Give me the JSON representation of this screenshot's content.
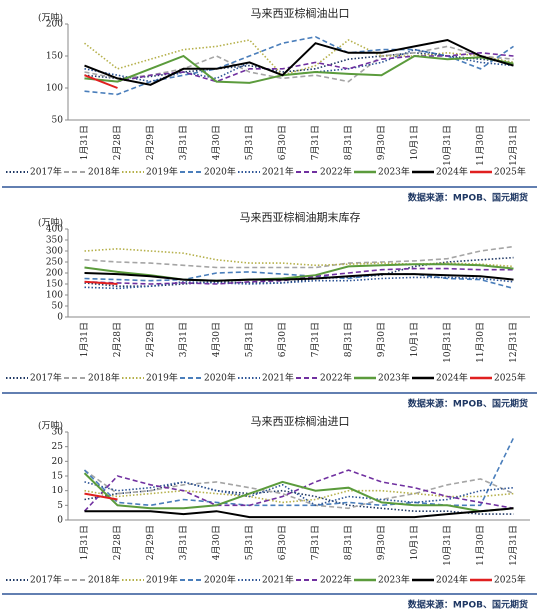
{
  "chart_data": [
    {
      "type": "line",
      "title": "马来西亚棕榈油出口",
      "y_unit": "(万吨)",
      "source": "数据来源：MPOB、国元期货",
      "categories": [
        "1月31日",
        "2月28日",
        "2月29日",
        "3月31日",
        "4月30日",
        "5月31日",
        "6月30日",
        "7月31日",
        "8月31日",
        "9月30日",
        "10月1日",
        "10月31日",
        "11月30日",
        "12月31日"
      ],
      "ylim": [
        50,
        200
      ],
      "yticks": [
        50,
        100,
        150,
        200
      ],
      "series": [
        {
          "name": "2017年",
          "color": "#1f3864",
          "style": "dotted",
          "values": [
            120,
            115,
            118,
            125,
            130,
            135,
            125,
            130,
            145,
            150,
            155,
            150,
            145,
            140
          ]
        },
        {
          "name": "2018年",
          "color": "#a5a5a5",
          "style": "dashed",
          "values": [
            125,
            115,
            120,
            130,
            150,
            125,
            115,
            120,
            110,
            150,
            155,
            165,
            150,
            145
          ]
        },
        {
          "name": "2019年",
          "color": "#b5b04a",
          "style": "dotted",
          "values": [
            170,
            130,
            145,
            160,
            165,
            175,
            120,
            135,
            175,
            150,
            150,
            155,
            150,
            140
          ]
        },
        {
          "name": "2020年",
          "color": "#4a7ebb",
          "style": "dashed",
          "values": [
            95,
            90,
            110,
            120,
            130,
            150,
            170,
            180,
            155,
            160,
            160,
            150,
            130,
            165
          ]
        },
        {
          "name": "2021年",
          "color": "#2e5597",
          "style": "dotted",
          "values": [
            130,
            120,
            110,
            125,
            115,
            140,
            120,
            125,
            130,
            140,
            160,
            150,
            140,
            135
          ]
        },
        {
          "name": "2022年",
          "color": "#7030a0",
          "style": "dashed",
          "values": [
            115,
            110,
            120,
            125,
            110,
            130,
            130,
            140,
            130,
            145,
            150,
            150,
            155,
            150
          ]
        },
        {
          "name": "2023年",
          "color": "#5b9b3c",
          "style": "solid",
          "values": [
            115,
            110,
            130,
            150,
            110,
            108,
            120,
            125,
            122,
            120,
            150,
            145,
            148,
            138
          ]
        },
        {
          "name": "2024年",
          "color": "#000000",
          "style": "solid",
          "values": [
            135,
            115,
            105,
            130,
            130,
            140,
            120,
            170,
            155,
            155,
            165,
            175,
            150,
            135
          ]
        },
        {
          "name": "2025年",
          "color": "#e02020",
          "style": "solid",
          "values": [
            120,
            100,
            null,
            null,
            null,
            null,
            null,
            null,
            null,
            null,
            null,
            null,
            null,
            null
          ]
        }
      ]
    },
    {
      "type": "line",
      "title": "马来西亚棕榈油期末库存",
      "y_unit": "(万吨)",
      "source": "数据来源：MPOB、国元期货",
      "categories": [
        "1月31日",
        "2月28日",
        "2月29日",
        "3月31日",
        "4月30日",
        "5月31日",
        "6月30日",
        "7月31日",
        "8月31日",
        "9月30日",
        "10月1日",
        "10月31日",
        "11月30日",
        "12月31日"
      ],
      "ylim": [
        0,
        400
      ],
      "yticks": [
        0,
        50,
        100,
        150,
        200,
        250,
        300,
        350,
        400
      ],
      "series": [
        {
          "name": "2017年",
          "color": "#1f3864",
          "style": "dotted",
          "values": [
            155,
            140,
            140,
            150,
            160,
            155,
            155,
            175,
            180,
            190,
            230,
            250,
            260,
            270
          ]
        },
        {
          "name": "2018年",
          "color": "#a5a5a5",
          "style": "dashed",
          "values": [
            260,
            250,
            245,
            235,
            225,
            225,
            225,
            225,
            245,
            250,
            255,
            265,
            300,
            320
          ]
        },
        {
          "name": "2019年",
          "color": "#b5b04a",
          "style": "dotted",
          "values": [
            300,
            310,
            300,
            290,
            260,
            245,
            245,
            235,
            240,
            245,
            240,
            245,
            240,
            230
          ]
        },
        {
          "name": "2020年",
          "color": "#4a7ebb",
          "style": "dashed",
          "values": [
            175,
            170,
            165,
            170,
            200,
            205,
            195,
            185,
            175,
            195,
            195,
            175,
            170,
            130
          ]
        },
        {
          "name": "2021年",
          "color": "#2e5597",
          "style": "dotted",
          "values": [
            135,
            130,
            140,
            160,
            155,
            150,
            155,
            165,
            165,
            175,
            180,
            180,
            175,
            160
          ]
        },
        {
          "name": "2022年",
          "color": "#7030a0",
          "style": "dashed",
          "values": [
            160,
            155,
            150,
            155,
            150,
            160,
            165,
            185,
            200,
            215,
            220,
            220,
            215,
            215
          ]
        },
        {
          "name": "2023年",
          "color": "#5b9b3c",
          "style": "solid",
          "values": [
            225,
            205,
            190,
            170,
            165,
            170,
            175,
            190,
            230,
            235,
            240,
            240,
            235,
            220
          ]
        },
        {
          "name": "2024年",
          "color": "#000000",
          "style": "solid",
          "values": [
            200,
            195,
            185,
            170,
            165,
            170,
            170,
            175,
            185,
            195,
            195,
            190,
            185,
            170
          ]
        },
        {
          "name": "2025年",
          "color": "#e02020",
          "style": "solid",
          "values": [
            160,
            150,
            null,
            null,
            null,
            null,
            null,
            null,
            null,
            null,
            null,
            null,
            null,
            null
          ]
        }
      ]
    },
    {
      "type": "line",
      "title": "马来西亚棕榈油进口",
      "y_unit": "(万吨)",
      "source": "数据来源：MPOB、国元期货",
      "categories": [
        "1月31日",
        "2月28日",
        "2月29日",
        "3月31日",
        "4月30日",
        "5月31日",
        "6月30日",
        "7月31日",
        "8月31日",
        "9月30日",
        "10月1日",
        "10月31日",
        "11月30日",
        "12月31日"
      ],
      "ylim": [
        0,
        30
      ],
      "yticks": [
        0,
        5,
        10,
        15,
        20,
        25,
        30
      ],
      "series": [
        {
          "name": "2017年",
          "color": "#1f3864",
          "style": "dotted",
          "values": [
            7,
            9,
            10,
            13,
            10,
            9,
            10,
            8,
            5,
            4,
            3,
            3,
            2,
            2
          ]
        },
        {
          "name": "2018年",
          "color": "#a5a5a5",
          "style": "dashed",
          "values": [
            17,
            9,
            10,
            12,
            13,
            11,
            9,
            5,
            4,
            7,
            9,
            12,
            14,
            9
          ]
        },
        {
          "name": "2019年",
          "color": "#b5b04a",
          "style": "dotted",
          "values": [
            10,
            8,
            9,
            10,
            9,
            8,
            6,
            7,
            10,
            10,
            9,
            8,
            8,
            9
          ]
        },
        {
          "name": "2020年",
          "color": "#4a7ebb",
          "style": "dashed",
          "values": [
            17,
            6,
            5,
            7,
            6,
            5,
            5,
            5,
            6,
            5,
            6,
            5,
            5,
            28
          ]
        },
        {
          "name": "2021年",
          "color": "#2e5597",
          "style": "dotted",
          "values": [
            13,
            10,
            11,
            13,
            10,
            8,
            12,
            5,
            8,
            7,
            6,
            7,
            10,
            11
          ]
        },
        {
          "name": "2022年",
          "color": "#7030a0",
          "style": "dashed",
          "values": [
            3,
            15,
            12,
            10,
            5,
            5,
            8,
            13,
            17,
            13,
            11,
            8,
            6,
            4
          ]
        },
        {
          "name": "2023年",
          "color": "#5b9b3c",
          "style": "solid",
          "values": [
            16,
            5,
            4,
            4,
            5,
            9,
            13,
            10,
            11,
            6,
            5,
            5,
            3,
            4
          ]
        },
        {
          "name": "2024年",
          "color": "#000000",
          "style": "solid",
          "values": [
            3,
            3,
            3,
            2,
            3,
            1,
            1,
            1,
            1,
            1,
            1,
            2,
            3,
            4
          ]
        },
        {
          "name": "2025年",
          "color": "#e02020",
          "style": "solid",
          "values": [
            9,
            7,
            null,
            null,
            null,
            null,
            null,
            null,
            null,
            null,
            null,
            null,
            null,
            null
          ]
        }
      ]
    }
  ]
}
